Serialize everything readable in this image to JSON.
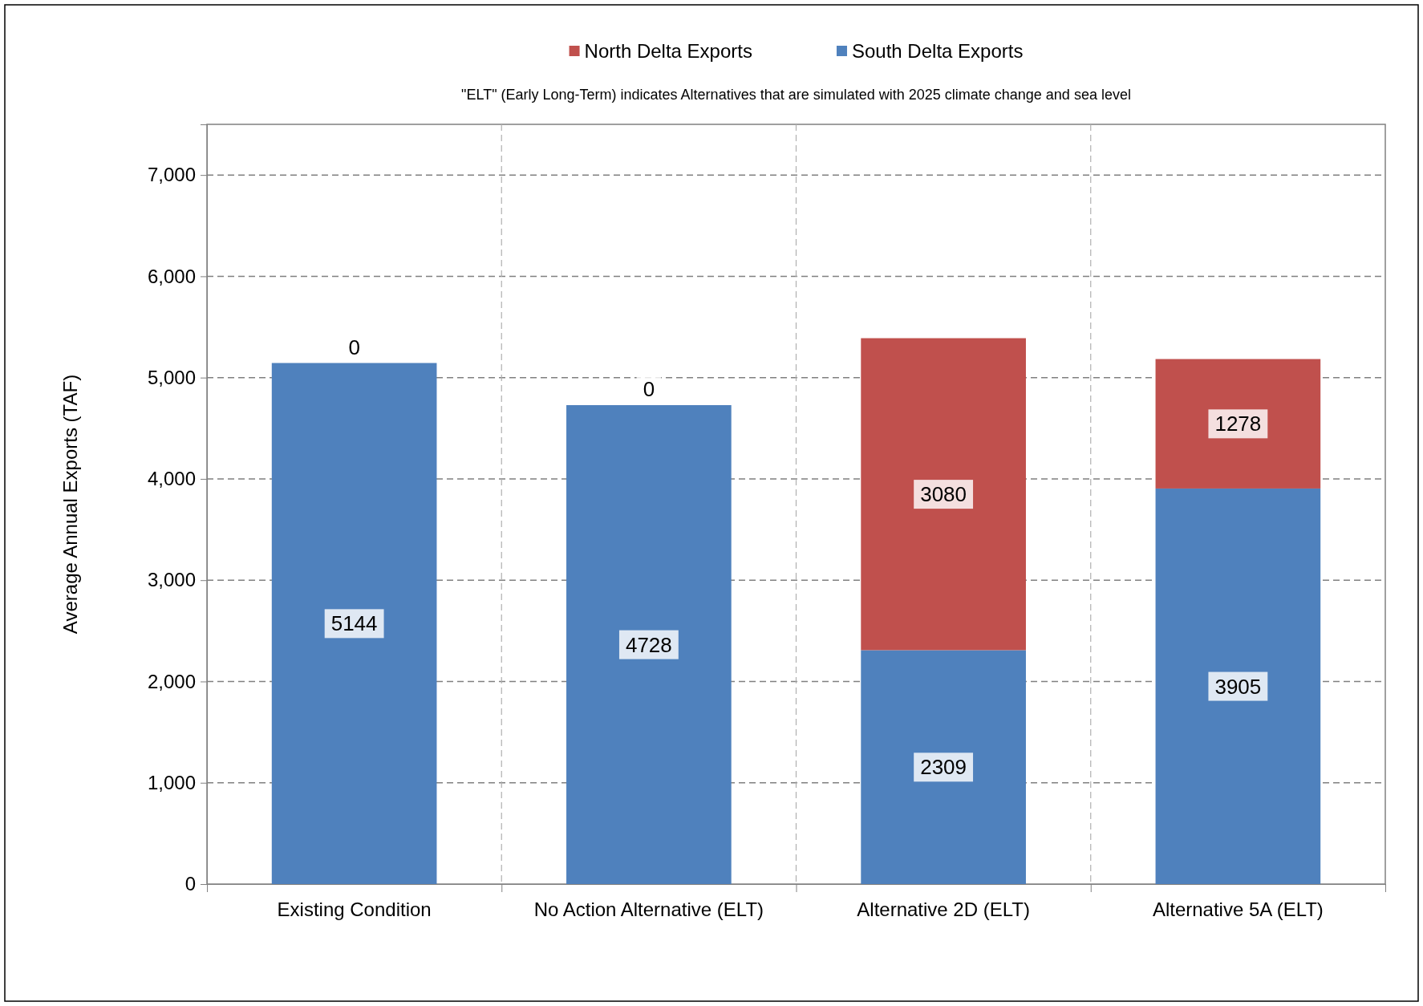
{
  "chart_data": {
    "type": "bar",
    "subtitle": "\"ELT\" (Early Long-Term) indicates Alternatives that are simulated with 2025 climate change and sea level",
    "ylabel": "Average Annual Exports (TAF)",
    "categories": [
      "Existing Condition",
      "No Action Alternative (ELT)",
      "Alternative 2D (ELT)",
      "Alternative 5A (ELT)"
    ],
    "series": [
      {
        "name": "South Delta Exports",
        "color": "#4f81bd",
        "values": [
          5144,
          4728,
          2309,
          3905
        ]
      },
      {
        "name": "North Delta Exports",
        "color": "#c0504d",
        "values": [
          0,
          0,
          3080,
          1278
        ]
      }
    ],
    "stacked": true,
    "ylim": [
      0,
      7500
    ],
    "yticks": [
      {
        "value": 0,
        "label": "0"
      },
      {
        "value": 1000,
        "label": "1,000"
      },
      {
        "value": 2000,
        "label": "2,000"
      },
      {
        "value": 3000,
        "label": "3,000"
      },
      {
        "value": 4000,
        "label": "4,000"
      },
      {
        "value": 5000,
        "label": "5,000"
      },
      {
        "value": 6000,
        "label": "6,000"
      },
      {
        "value": 7000,
        "label": "7,000"
      }
    ],
    "grid": true,
    "legend": "top",
    "data_labels": true
  }
}
